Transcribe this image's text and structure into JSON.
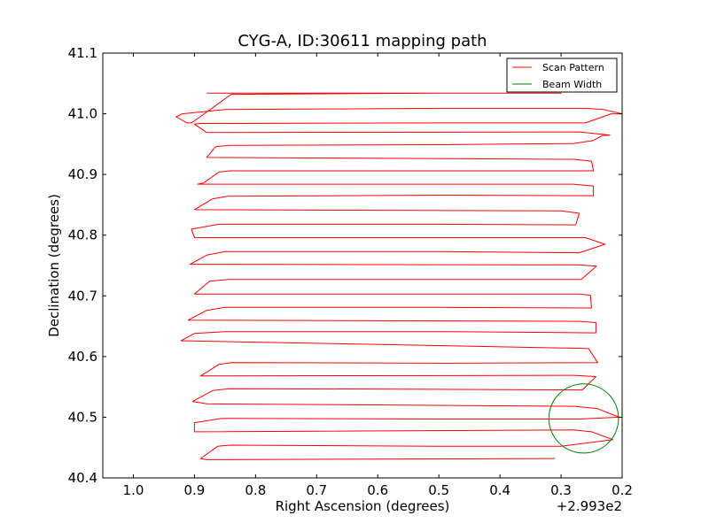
{
  "chart_data": {
    "type": "line",
    "title": "CYG-A, ID:30611 mapping path",
    "xlabel": "Right Ascension (degrees)",
    "ylabel": "Declination (degrees)",
    "x_offset_label": "+2.993e2",
    "xlim": [
      1.05,
      0.2
    ],
    "ylim": [
      40.4,
      41.1
    ],
    "x_ticks": [
      1.0,
      0.9,
      0.8,
      0.7,
      0.6,
      0.5,
      0.4,
      0.3,
      0.2
    ],
    "x_tick_labels": [
      "1.0",
      "0.9",
      "0.8",
      "0.7",
      "0.6",
      "0.5",
      "0.4",
      "0.3",
      "0.2"
    ],
    "y_ticks": [
      40.4,
      40.5,
      40.6,
      40.7,
      40.8,
      40.9,
      41.0,
      41.1
    ],
    "y_tick_labels": [
      "40.4",
      "40.5",
      "40.6",
      "40.7",
      "40.8",
      "40.9",
      "41.0",
      "41.1"
    ],
    "grid": false,
    "legend": {
      "position": "top-right",
      "entries": [
        "Scan Pattern",
        "Beam Width"
      ]
    },
    "colors": {
      "scan": "#ff0000",
      "beam": "#008000"
    },
    "series": [
      {
        "name": "Scan Pattern",
        "points": [
          [
            0.31,
            40.432
          ],
          [
            0.88,
            40.43
          ],
          [
            0.89,
            40.432
          ],
          [
            0.862,
            40.452
          ],
          [
            0.842,
            40.454
          ],
          [
            0.5,
            40.452
          ],
          [
            0.3,
            40.452
          ],
          [
            0.215,
            40.463
          ],
          [
            0.25,
            40.476
          ],
          [
            0.28,
            40.479
          ],
          [
            0.9,
            40.476
          ],
          [
            0.9,
            40.491
          ],
          [
            0.855,
            40.498
          ],
          [
            0.5,
            40.497
          ],
          [
            0.27,
            40.497
          ],
          [
            0.205,
            40.5
          ],
          [
            0.24,
            40.514
          ],
          [
            0.277,
            40.518
          ],
          [
            0.88,
            40.522
          ],
          [
            0.903,
            40.526
          ],
          [
            0.87,
            40.544
          ],
          [
            0.842,
            40.547
          ],
          [
            0.5,
            40.546
          ],
          [
            0.265,
            40.545
          ],
          [
            0.243,
            40.567
          ],
          [
            0.28,
            40.569
          ],
          [
            0.88,
            40.568
          ],
          [
            0.89,
            40.568
          ],
          [
            0.86,
            40.587
          ],
          [
            0.84,
            40.59
          ],
          [
            0.5,
            40.589
          ],
          [
            0.24,
            40.59
          ],
          [
            0.255,
            40.613
          ],
          [
            0.29,
            40.614
          ],
          [
            0.922,
            40.626
          ],
          [
            0.9,
            40.638
          ],
          [
            0.85,
            40.641
          ],
          [
            0.5,
            40.641
          ],
          [
            0.243,
            40.639
          ],
          [
            0.243,
            40.656
          ],
          [
            0.27,
            40.658
          ],
          [
            0.91,
            40.66
          ],
          [
            0.88,
            40.676
          ],
          [
            0.85,
            40.681
          ],
          [
            0.5,
            40.681
          ],
          [
            0.25,
            40.68
          ],
          [
            0.252,
            40.701
          ],
          [
            0.27,
            40.703
          ],
          [
            0.9,
            40.703
          ],
          [
            0.875,
            40.724
          ],
          [
            0.845,
            40.727
          ],
          [
            0.5,
            40.727
          ],
          [
            0.267,
            40.727
          ],
          [
            0.242,
            40.749
          ],
          [
            0.273,
            40.751
          ],
          [
            0.907,
            40.752
          ],
          [
            0.88,
            40.767
          ],
          [
            0.85,
            40.773
          ],
          [
            0.5,
            40.773
          ],
          [
            0.27,
            40.771
          ],
          [
            0.228,
            40.785
          ],
          [
            0.26,
            40.796
          ],
          [
            0.9,
            40.796
          ],
          [
            0.905,
            40.81
          ],
          [
            0.86,
            40.818
          ],
          [
            0.5,
            40.818
          ],
          [
            0.276,
            40.817
          ],
          [
            0.27,
            40.836
          ],
          [
            0.3,
            40.84
          ],
          [
            0.9,
            40.842
          ],
          [
            0.87,
            40.86
          ],
          [
            0.845,
            40.864
          ],
          [
            0.5,
            40.866
          ],
          [
            0.247,
            40.865
          ],
          [
            0.247,
            40.881
          ],
          [
            0.28,
            40.884
          ],
          [
            0.895,
            40.884
          ],
          [
            0.885,
            40.886
          ],
          [
            0.86,
            40.904
          ],
          [
            0.842,
            40.906
          ],
          [
            0.5,
            40.906
          ],
          [
            0.247,
            40.906
          ],
          [
            0.25,
            40.922
          ],
          [
            0.28,
            40.925
          ],
          [
            0.88,
            40.928
          ],
          [
            0.865,
            40.946
          ],
          [
            0.842,
            40.948
          ],
          [
            0.5,
            40.949
          ],
          [
            0.28,
            40.951
          ],
          [
            0.247,
            40.956
          ],
          [
            0.233,
            40.964
          ],
          [
            0.22,
            40.965
          ],
          [
            0.27,
            40.97
          ],
          [
            0.88,
            40.969
          ],
          [
            0.9,
            40.983
          ],
          [
            0.89,
            40.984
          ],
          [
            0.5,
            40.985
          ],
          [
            0.26,
            40.985
          ],
          [
            0.218,
            41.0
          ],
          [
            0.2,
            41.0
          ],
          [
            0.23,
            41.007
          ],
          [
            0.26,
            41.009
          ],
          [
            0.5,
            41.009
          ],
          [
            0.85,
            41.007
          ],
          [
            0.92,
            41.0
          ],
          [
            0.93,
            40.995
          ],
          [
            0.912,
            40.985
          ],
          [
            0.905,
            40.985
          ],
          [
            0.87,
            41.01
          ],
          [
            0.84,
            41.032
          ],
          [
            0.5,
            41.034
          ],
          [
            0.3,
            41.034
          ],
          [
            0.88,
            41.034
          ]
        ]
      },
      {
        "name": "Beam Width",
        "shape": "circle",
        "center": [
          0.263,
          40.498
        ],
        "radius_x": 0.057,
        "radius_y": 0.057
      }
    ]
  }
}
